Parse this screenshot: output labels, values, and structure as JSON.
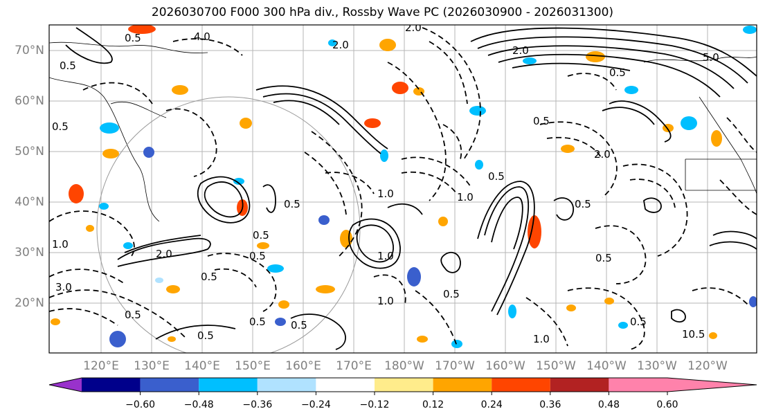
{
  "title": "2026030700 F000 300 hPa div., Rossby Wave PC (2026030900 - 2026031300)",
  "latitude_labels": [
    "70°N",
    "60°N",
    "50°N",
    "40°N",
    "30°N",
    "20°N"
  ],
  "longitude_labels": [
    "120°E",
    "130°E",
    "140°E",
    "150°E",
    "160°E",
    "170°E",
    "180°W",
    "170°W",
    "160°W",
    "150°W",
    "140°W",
    "130°W",
    "120°W"
  ],
  "colorbar": {
    "colors": [
      "#9932cc",
      "#00008b",
      "#3a5fcd",
      "#00bfff",
      "#b0e2ff",
      "#ffffff",
      "#ffec8b",
      "#ffa500",
      "#ff4500",
      "#b22222",
      "#ff82ab"
    ],
    "ticks": [
      "−0.60",
      "−0.48",
      "−0.36",
      "−0.24",
      "−0.12",
      "0.12",
      "0.24",
      "0.36",
      "0.48",
      "0.60"
    ]
  },
  "contour_labels": [
    "4.0",
    "2.0",
    "0.5",
    "0.5",
    "1.0",
    "2.0",
    "0.5",
    "0.5",
    "1.0",
    "0.5",
    "0.5",
    "2.0",
    "1.0",
    "0.5",
    "0.5",
    "5.0",
    "0.5",
    "3.0",
    "0.5",
    "0.5",
    "1.0",
    "2.0",
    "0.5",
    "1.0",
    "0.5",
    "0.5",
    "0.5",
    "10.5",
    "1.0",
    "0.5",
    "2.0",
    "0.5",
    "0.5"
  ]
}
